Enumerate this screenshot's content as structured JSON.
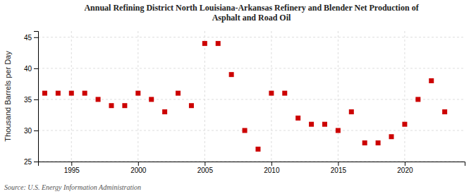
{
  "chart_data": {
    "type": "scatter",
    "title": "Annual Refining District North Louisiana-Arkansas Refinery and Blender Net Production of\nAsphalt and Road Oil",
    "ylabel": "Thousand Barrels per Day",
    "source": "Source: U.S. Energy Information Administration",
    "x": [
      1993,
      1994,
      1995,
      1996,
      1997,
      1998,
      1999,
      2000,
      2001,
      2002,
      2003,
      2004,
      2005,
      2006,
      2007,
      2008,
      2009,
      2010,
      2011,
      2012,
      2013,
      2014,
      2015,
      2016,
      2017,
      2018,
      2019,
      2020,
      2021,
      2022,
      2023
    ],
    "values": [
      36,
      36,
      36,
      36,
      35,
      34,
      34,
      36,
      35,
      33,
      36,
      34,
      44,
      44,
      39,
      30,
      27,
      36,
      36,
      32,
      31,
      31,
      30,
      33,
      28,
      28,
      29,
      31,
      35,
      38,
      33
    ],
    "color": "#cc0000",
    "marker": "square",
    "xlim": [
      1992.5,
      2024.5
    ],
    "ylim": [
      25,
      46
    ],
    "xticks": [
      1995,
      2000,
      2005,
      2010,
      2015,
      2020
    ],
    "yticks": [
      25,
      30,
      35,
      40,
      45
    ],
    "grid": true
  }
}
